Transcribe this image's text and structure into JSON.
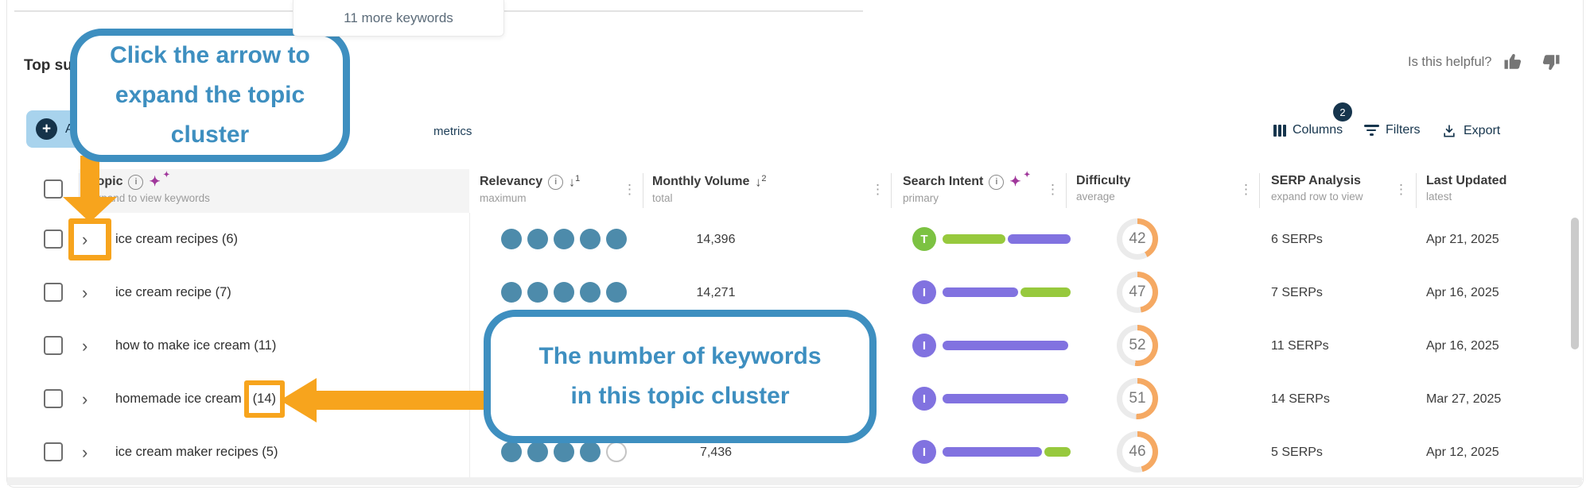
{
  "top_tooltip": {
    "text": "11 more keywords"
  },
  "heading": {
    "visible_text": "Top su"
  },
  "helpful": {
    "label": "Is this helpful?"
  },
  "toolbar": {
    "add_button_visible_text": "A",
    "metrics_visible_text": "metrics",
    "columns_label": "Columns",
    "columns_badge": "2",
    "filters_label": "Filters",
    "export_label": "Export"
  },
  "glyphs": {
    "chevron": "›",
    "ellipsis": "⋮",
    "sort_arrow": "↓",
    "info_i": "i",
    "sparkle": "✦",
    "plus": "+"
  },
  "table": {
    "header": {
      "topic": {
        "label": "Topic",
        "sub": "expand to view keywords"
      },
      "relevancy": {
        "label": "Relevancy",
        "sub": "maximum",
        "sort_rank": "1"
      },
      "volume": {
        "label": "Monthly Volume",
        "sub": "total",
        "sort_rank": "2"
      },
      "intent": {
        "label": "Search Intent",
        "sub": "primary"
      },
      "difficulty": {
        "label": "Difficulty",
        "sub": "average"
      },
      "serp": {
        "label": "SERP Analysis",
        "sub": "expand row to view"
      },
      "updated": {
        "label": "Last Updated",
        "sub": "latest"
      }
    },
    "rows": [
      {
        "topic": "ice cream recipes (6)",
        "relevancy_filled": 5,
        "relevancy_total": 5,
        "volume": "14,396",
        "intent_letter": "T",
        "intent_badge_color": "#7cc242",
        "intent_segments": [
          {
            "color": "#97c93d",
            "pct": 50
          },
          {
            "color": "#8172e0",
            "pct": 50
          }
        ],
        "difficulty": 42,
        "serps": "6 SERPs",
        "updated": "Apr 21, 2025"
      },
      {
        "topic": "ice cream recipe (7)",
        "relevancy_filled": 5,
        "relevancy_total": 5,
        "volume": "14,271",
        "intent_letter": "I",
        "intent_badge_color": "#8172e0",
        "intent_segments": [
          {
            "color": "#8172e0",
            "pct": 60
          },
          {
            "color": "#97c93d",
            "pct": 40
          }
        ],
        "difficulty": 47,
        "serps": "7 SERPs",
        "updated": "Apr 16, 2025"
      },
      {
        "topic": "how to make ice cream (11)",
        "relevancy_filled": null,
        "relevancy_total": 5,
        "volume": null,
        "intent_letter": "I",
        "intent_badge_color": "#8172e0",
        "intent_segments": [
          {
            "color": "#8172e0",
            "pct": 100
          }
        ],
        "difficulty": 52,
        "serps": "11 SERPs",
        "updated": "Apr 16, 2025"
      },
      {
        "topic_prefix": "homemade ice cream",
        "topic_count": "(14)",
        "relevancy_filled": null,
        "relevancy_total": 5,
        "volume": null,
        "intent_letter": "I",
        "intent_badge_color": "#8172e0",
        "intent_segments": [
          {
            "color": "#8172e0",
            "pct": 100
          }
        ],
        "difficulty": 51,
        "serps": "14 SERPs",
        "updated": "Mar 27, 2025"
      },
      {
        "topic": "ice cream maker recipes (5)",
        "relevancy_filled": 4,
        "relevancy_total": 5,
        "volume": "7,436",
        "intent_letter": "I",
        "intent_badge_color": "#8172e0",
        "intent_segments": [
          {
            "color": "#8172e0",
            "pct": 79
          },
          {
            "color": "#97c93d",
            "pct": 21
          }
        ],
        "difficulty": 46,
        "serps": "5 SERPs",
        "updated": "Apr 12, 2025"
      }
    ],
    "row2_updated_fix": "Mar 27, 2025"
  },
  "annotations": {
    "callout_arrow": {
      "line1": "Click the arrow to",
      "line2": "expand the topic cluster"
    },
    "callout_count": {
      "line1": "The number of keywords",
      "line2": "in this topic cluster"
    }
  },
  "colors": {
    "dot": "#4d8bab",
    "dot_empty_border": "#c4c4c4",
    "donut_arc": "#f5a963",
    "donut_track": "#ebebeb",
    "navy": "#16354d",
    "callout": "#3e8fc0",
    "arrow_orange": "#f7a41d",
    "sparkle": "#a0379b"
  }
}
